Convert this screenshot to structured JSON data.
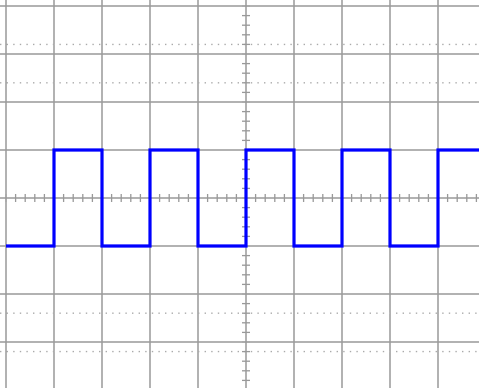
{
  "chart_data": {
    "type": "line",
    "title": "",
    "xlabel": "",
    "ylabel": "",
    "grid": true,
    "x_range": [
      -5,
      5
    ],
    "y_range": [
      -4,
      4
    ],
    "divisions": {
      "x": 10,
      "y": 8
    },
    "minor_ticks_per_division": 5,
    "series": [
      {
        "color": "#0000ff",
        "style": "square-wave",
        "x": [
          -5,
          -4,
          -4,
          -3,
          -3,
          -2,
          -2,
          -1,
          -1,
          0,
          0,
          1,
          1,
          2,
          2,
          3,
          3,
          4,
          4,
          5
        ],
        "y": [
          -1,
          -1,
          1,
          1,
          -1,
          -1,
          1,
          1,
          -1,
          -1,
          1,
          1,
          -1,
          -1,
          1,
          1,
          -1,
          -1,
          1,
          1
        ]
      }
    ]
  },
  "colors": {
    "background": "#ffffff",
    "grid": "#999999",
    "dots": "#aaaaaa",
    "trace": "#0000ff"
  }
}
